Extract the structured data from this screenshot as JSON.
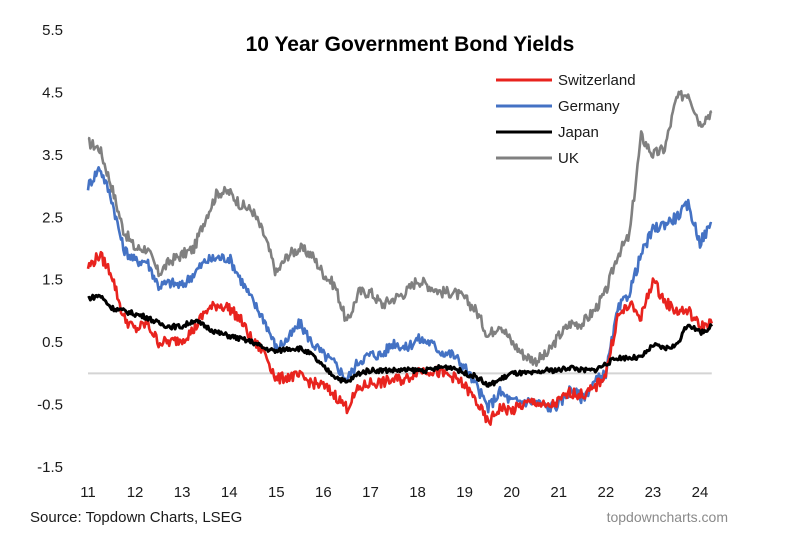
{
  "chart_data": {
    "type": "line",
    "title": "10 Year Government Bond Yields",
    "xlabel": "",
    "ylabel": "",
    "xlim": [
      2011,
      2024.5
    ],
    "ylim": [
      -1.5,
      5.5
    ],
    "y_ticks": [
      "5.5",
      "4.5",
      "3.5",
      "2.5",
      "1.5",
      "0.5",
      "-0.5",
      "-1.5"
    ],
    "y_tick_values": [
      5.5,
      4.5,
      3.5,
      2.5,
      1.5,
      0.5,
      -0.5,
      -1.5
    ],
    "x_ticks": [
      "11",
      "12",
      "13",
      "14",
      "15",
      "16",
      "17",
      "18",
      "19",
      "20",
      "21",
      "22",
      "23",
      "24"
    ],
    "x_tick_values": [
      2011,
      2012,
      2013,
      2014,
      2015,
      2016,
      2017,
      2018,
      2019,
      2020,
      2021,
      2022,
      2023,
      2024
    ],
    "zero_line": 0,
    "grid": false,
    "legend_position": "top-right",
    "source": "Source: Topdown Charts, LSEG",
    "watermark": "topdowncharts.com",
    "x": [
      2011.0,
      2011.25,
      2011.5,
      2011.75,
      2012.0,
      2012.25,
      2012.5,
      2012.75,
      2013.0,
      2013.25,
      2013.5,
      2013.75,
      2014.0,
      2014.25,
      2014.5,
      2014.75,
      2015.0,
      2015.25,
      2015.5,
      2015.75,
      2016.0,
      2016.25,
      2016.5,
      2016.75,
      2017.0,
      2017.25,
      2017.5,
      2017.75,
      2018.0,
      2018.25,
      2018.5,
      2018.75,
      2019.0,
      2019.25,
      2019.5,
      2019.75,
      2020.0,
      2020.25,
      2020.5,
      2020.75,
      2021.0,
      2021.25,
      2021.5,
      2021.75,
      2022.0,
      2022.25,
      2022.5,
      2022.75,
      2023.0,
      2023.25,
      2023.5,
      2023.75,
      2024.0,
      2024.25
    ],
    "series": [
      {
        "name": "Switzerland",
        "color": "#e8231e",
        "values": [
          1.7,
          1.9,
          1.6,
          0.9,
          0.7,
          0.8,
          0.5,
          0.5,
          0.55,
          0.7,
          1.0,
          1.1,
          1.05,
          0.85,
          0.5,
          0.35,
          -0.1,
          -0.05,
          -0.05,
          -0.15,
          -0.2,
          -0.35,
          -0.55,
          -0.25,
          -0.15,
          -0.15,
          -0.1,
          -0.1,
          0.05,
          0.05,
          0.0,
          -0.05,
          -0.2,
          -0.45,
          -0.8,
          -0.55,
          -0.6,
          -0.5,
          -0.45,
          -0.55,
          -0.45,
          -0.3,
          -0.35,
          -0.25,
          0.0,
          0.9,
          1.1,
          0.9,
          1.5,
          1.15,
          1.0,
          1.0,
          0.75,
          0.8
        ]
      },
      {
        "name": "Germany",
        "color": "#4472c4",
        "values": [
          3.0,
          3.3,
          2.8,
          2.0,
          1.8,
          1.8,
          1.4,
          1.45,
          1.4,
          1.6,
          1.8,
          1.85,
          1.85,
          1.5,
          1.15,
          0.85,
          0.4,
          0.55,
          0.8,
          0.5,
          0.3,
          0.15,
          -0.1,
          0.2,
          0.3,
          0.3,
          0.5,
          0.4,
          0.55,
          0.5,
          0.35,
          0.3,
          0.1,
          -0.2,
          -0.55,
          -0.3,
          -0.45,
          -0.45,
          -0.45,
          -0.55,
          -0.5,
          -0.25,
          -0.4,
          -0.15,
          0.0,
          1.0,
          1.3,
          1.9,
          2.3,
          2.4,
          2.5,
          2.7,
          2.1,
          2.4
        ]
      },
      {
        "name": "Japan",
        "color": "#000000",
        "values": [
          1.2,
          1.25,
          1.05,
          1.0,
          0.95,
          0.9,
          0.8,
          0.75,
          0.75,
          0.85,
          0.75,
          0.65,
          0.6,
          0.55,
          0.5,
          0.4,
          0.35,
          0.4,
          0.4,
          0.3,
          0.1,
          -0.05,
          -0.15,
          0.0,
          0.05,
          0.05,
          0.05,
          0.05,
          0.05,
          0.05,
          0.1,
          0.1,
          0.0,
          -0.05,
          -0.2,
          -0.1,
          0.0,
          0.0,
          0.0,
          0.05,
          0.05,
          0.1,
          0.05,
          0.05,
          0.15,
          0.25,
          0.25,
          0.25,
          0.45,
          0.4,
          0.45,
          0.8,
          0.65,
          0.75
        ]
      },
      {
        "name": "UK",
        "color": "#808080",
        "values": [
          3.7,
          3.6,
          3.0,
          2.3,
          2.0,
          2.0,
          1.6,
          1.8,
          1.9,
          2.0,
          2.5,
          2.9,
          2.9,
          2.7,
          2.6,
          2.2,
          1.6,
          1.9,
          2.0,
          1.9,
          1.6,
          1.4,
          0.8,
          1.3,
          1.3,
          1.1,
          1.2,
          1.3,
          1.5,
          1.4,
          1.3,
          1.3,
          1.2,
          1.0,
          0.6,
          0.8,
          0.5,
          0.3,
          0.2,
          0.3,
          0.6,
          0.8,
          0.8,
          1.0,
          1.3,
          1.9,
          2.2,
          3.8,
          3.5,
          3.6,
          4.4,
          4.5,
          4.0,
          4.2
        ]
      }
    ]
  }
}
